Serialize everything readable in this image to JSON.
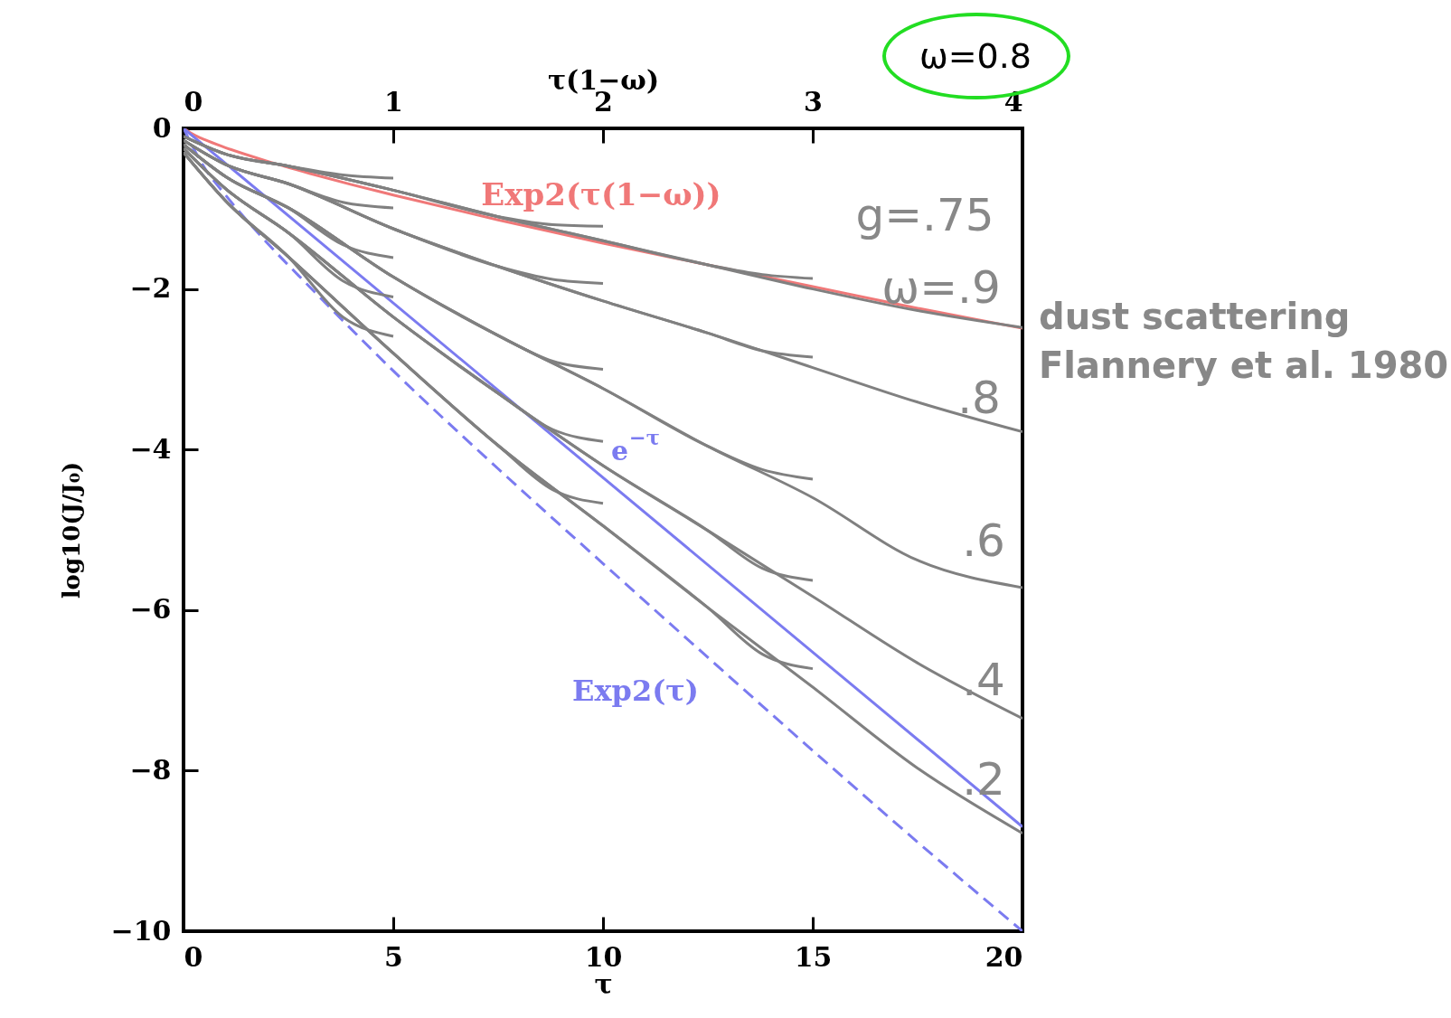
{
  "chart_data": {
    "type": "line",
    "xlabel": "τ",
    "ylabel": "log10(J/J₀)",
    "x2label": "τ(1−ω)",
    "xlim": [
      0,
      20
    ],
    "xticks": [
      0,
      5,
      10,
      15,
      20
    ],
    "x2lim": [
      0,
      4
    ],
    "x2ticks": [
      0,
      1,
      2,
      3,
      4
    ],
    "ylim": [
      -10,
      0
    ],
    "yticks": [
      -10,
      -8,
      -6,
      -4,
      -2,
      0
    ],
    "grid": false,
    "series": [
      {
        "name": "Exp2(τ(1−ω))",
        "color": "#f07878",
        "x": [
          0,
          0.25,
          0.5,
          1,
          2,
          3,
          4,
          5,
          7.5,
          10,
          12.5,
          15,
          17.5,
          20
        ],
        "values": [
          0,
          -0.08,
          -0.14,
          -0.24,
          -0.41,
          -0.56,
          -0.7,
          -0.83,
          -1.14,
          -1.43,
          -1.7,
          -1.97,
          -2.24,
          -2.49
        ]
      },
      {
        "name": "e$^{−τ}$",
        "color": "#7b7bf0",
        "x": [
          0,
          20
        ],
        "values": [
          0,
          -8.7
        ]
      },
      {
        "name": "Exp2(τ)",
        "color": "#7b7bf0",
        "line_style": "dashed",
        "x": [
          0,
          0.5,
          1,
          2,
          3,
          5,
          7.5,
          10,
          12.5,
          15,
          17.5,
          20
        ],
        "values": [
          0,
          -0.49,
          -0.83,
          -1.43,
          -1.97,
          -3.02,
          -4.24,
          -5.42,
          -6.59,
          -7.75,
          -8.89,
          -10
        ]
      },
      {
        "color": "#808080",
        "x": [
          0,
          1,
          2.5,
          5,
          7.5,
          10,
          12.5,
          15,
          17.5,
          20
        ],
        "values": [
          -0.1,
          -0.32,
          -0.47,
          -0.77,
          -1.1,
          -1.4,
          -1.7,
          -2.0,
          -2.27,
          -2.48
        ]
      },
      {
        "color": "#808080",
        "x": [
          0,
          1,
          2.5,
          5,
          7.5,
          10,
          12.5,
          15,
          17.5,
          20
        ],
        "values": [
          -0.15,
          -0.45,
          -0.69,
          -1.25,
          -1.72,
          -2.15,
          -2.55,
          -2.98,
          -3.41,
          -3.78
        ]
      },
      {
        "color": "#808080",
        "x": [
          0,
          1,
          2.5,
          5,
          7.5,
          10,
          12.5,
          15,
          17.5,
          20
        ],
        "values": [
          -0.2,
          -0.6,
          -0.99,
          -1.85,
          -2.58,
          -3.24,
          -3.96,
          -4.6,
          -5.38,
          -5.72
        ]
      },
      {
        "color": "#808080",
        "x": [
          0,
          1,
          2.5,
          5,
          7.5,
          10,
          12.5,
          15,
          17.5,
          20
        ],
        "values": [
          -0.25,
          -0.75,
          -1.3,
          -2.35,
          -3.3,
          -4.2,
          -5.01,
          -5.83,
          -6.66,
          -7.35
        ]
      },
      {
        "color": "#808080",
        "x": [
          0,
          1,
          2.5,
          5,
          7.5,
          10,
          12.5,
          15,
          17.5,
          20
        ],
        "values": [
          -0.3,
          -0.9,
          -1.6,
          -2.8,
          -3.95,
          -4.95,
          -5.97,
          -6.96,
          -7.97,
          -8.78
        ]
      },
      {
        "color": "#808080",
        "x": [
          0,
          1,
          2.5,
          3.8,
          5
        ],
        "values": [
          -0.1,
          -0.32,
          -0.47,
          -0.58,
          -0.62
        ]
      },
      {
        "color": "#808080",
        "x": [
          0,
          1,
          2.5,
          5,
          7.5,
          8.8,
          10
        ],
        "values": [
          -0.1,
          -0.32,
          -0.47,
          -0.77,
          -1.1,
          -1.2,
          -1.22
        ]
      },
      {
        "color": "#808080",
        "x": [
          0,
          1,
          2.5,
          5,
          7.5,
          10,
          12.5,
          13.8,
          15
        ],
        "values": [
          -0.1,
          -0.32,
          -0.47,
          -0.77,
          -1.1,
          -1.4,
          -1.7,
          -1.82,
          -1.87
        ]
      },
      {
        "color": "#808080",
        "x": [
          0,
          1,
          2.5,
          3.8,
          5
        ],
        "values": [
          -0.15,
          -0.45,
          -0.69,
          -0.92,
          -0.99
        ]
      },
      {
        "color": "#808080",
        "x": [
          0,
          1,
          2.5,
          5,
          7.5,
          8.8,
          10
        ],
        "values": [
          -0.15,
          -0.45,
          -0.69,
          -1.25,
          -1.72,
          -1.88,
          -1.93
        ]
      },
      {
        "color": "#808080",
        "x": [
          0,
          1,
          2.5,
          5,
          7.5,
          10,
          12.5,
          13.8,
          15
        ],
        "values": [
          -0.15,
          -0.45,
          -0.69,
          -1.25,
          -1.72,
          -2.15,
          -2.55,
          -2.77,
          -2.85
        ]
      },
      {
        "color": "#808080",
        "x": [
          0,
          1,
          2.5,
          3.8,
          5
        ],
        "values": [
          -0.2,
          -0.6,
          -0.99,
          -1.45,
          -1.61
        ]
      },
      {
        "color": "#808080",
        "x": [
          0,
          1,
          2.5,
          5,
          7.5,
          8.8,
          10
        ],
        "values": [
          -0.2,
          -0.6,
          -0.99,
          -1.85,
          -2.58,
          -2.9,
          -3.0
        ]
      },
      {
        "color": "#808080",
        "x": [
          0,
          1,
          2.5,
          5,
          7.5,
          10,
          12.5,
          13.8,
          15
        ],
        "values": [
          -0.2,
          -0.6,
          -0.99,
          -1.85,
          -2.58,
          -3.24,
          -3.96,
          -4.25,
          -4.37
        ]
      },
      {
        "color": "#808080",
        "x": [
          0,
          1,
          2.5,
          3.8,
          5
        ],
        "values": [
          -0.25,
          -0.75,
          -1.3,
          -1.9,
          -2.1
        ]
      },
      {
        "color": "#808080",
        "x": [
          0,
          1,
          2.5,
          5,
          7.5,
          8.8,
          10
        ],
        "values": [
          -0.25,
          -0.75,
          -1.3,
          -2.35,
          -3.3,
          -3.75,
          -3.9
        ]
      },
      {
        "color": "#808080",
        "x": [
          0,
          1,
          2.5,
          5,
          7.5,
          10,
          12.5,
          13.8,
          15
        ],
        "values": [
          -0.25,
          -0.75,
          -1.3,
          -2.35,
          -3.3,
          -4.2,
          -5.01,
          -5.48,
          -5.63
        ]
      },
      {
        "color": "#808080",
        "x": [
          0,
          1,
          2.5,
          3.8,
          5
        ],
        "values": [
          -0.3,
          -0.9,
          -1.6,
          -2.35,
          -2.59
        ]
      },
      {
        "color": "#808080",
        "x": [
          0,
          1,
          2.5,
          5,
          7.5,
          8.8,
          10
        ],
        "values": [
          -0.3,
          -0.9,
          -1.6,
          -2.8,
          -3.95,
          -4.5,
          -4.67
        ]
      },
      {
        "color": "#808080",
        "x": [
          0,
          1,
          2.5,
          5,
          7.5,
          10,
          12.5,
          13.8,
          15
        ],
        "values": [
          -0.3,
          -0.9,
          -1.6,
          -2.8,
          -3.95,
          -4.95,
          -5.97,
          -6.55,
          -6.73
        ]
      }
    ],
    "annotations": [
      "g=.75",
      "ω=.9",
      ".8",
      ".6",
      ".4",
      ".2",
      "ω=0.8",
      "dust scattering",
      "Flannery et al. 1980"
    ]
  }
}
